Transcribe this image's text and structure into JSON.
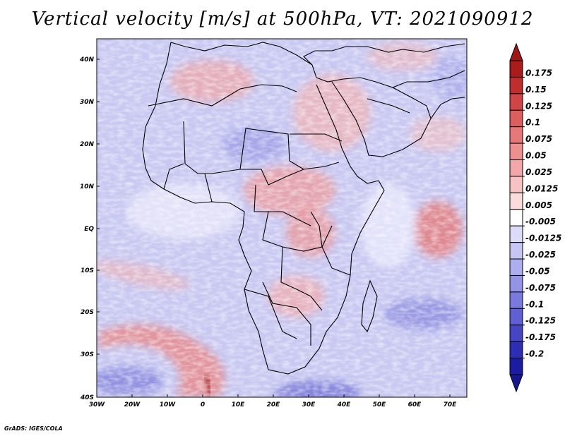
{
  "title": "Vertical velocity [m/s] at 500hPa, VT: 2021090912",
  "credit": "GrADS: IGES/COLA",
  "lat_labels": [
    "40N",
    "30N",
    "20N",
    "10N",
    "EQ",
    "10S",
    "20S",
    "30S",
    "40S"
  ],
  "lon_labels": [
    "30W",
    "20W",
    "10W",
    "0",
    "10E",
    "20E",
    "30E",
    "40E",
    "50E",
    "60E",
    "70E"
  ],
  "colorbar": {
    "labels": [
      "0.175",
      "0.15",
      "0.125",
      "0.1",
      "0.075",
      "0.05",
      "0.025",
      "0.0125",
      "0.005",
      "-0.005",
      "-0.0125",
      "-0.025",
      "-0.05",
      "-0.075",
      "-0.1",
      "-0.125",
      "-0.175",
      "-0.2"
    ],
    "colors": [
      "#aa1c1c",
      "#bf2e2e",
      "#d04545",
      "#dc5f5f",
      "#e57878",
      "#ec9090",
      "#f2a8a8",
      "#f7c2c2",
      "#fbdcdc",
      "#ffffff",
      "#dcdcfa",
      "#c6c6f4",
      "#aeaeee",
      "#9494e6",
      "#7a7ade",
      "#6060d2",
      "#4646c4",
      "#2e2eb4",
      "#1c1ca0"
    ],
    "top_arrow_color": "#9e1616",
    "bottom_arrow_color": "#16168e"
  }
}
